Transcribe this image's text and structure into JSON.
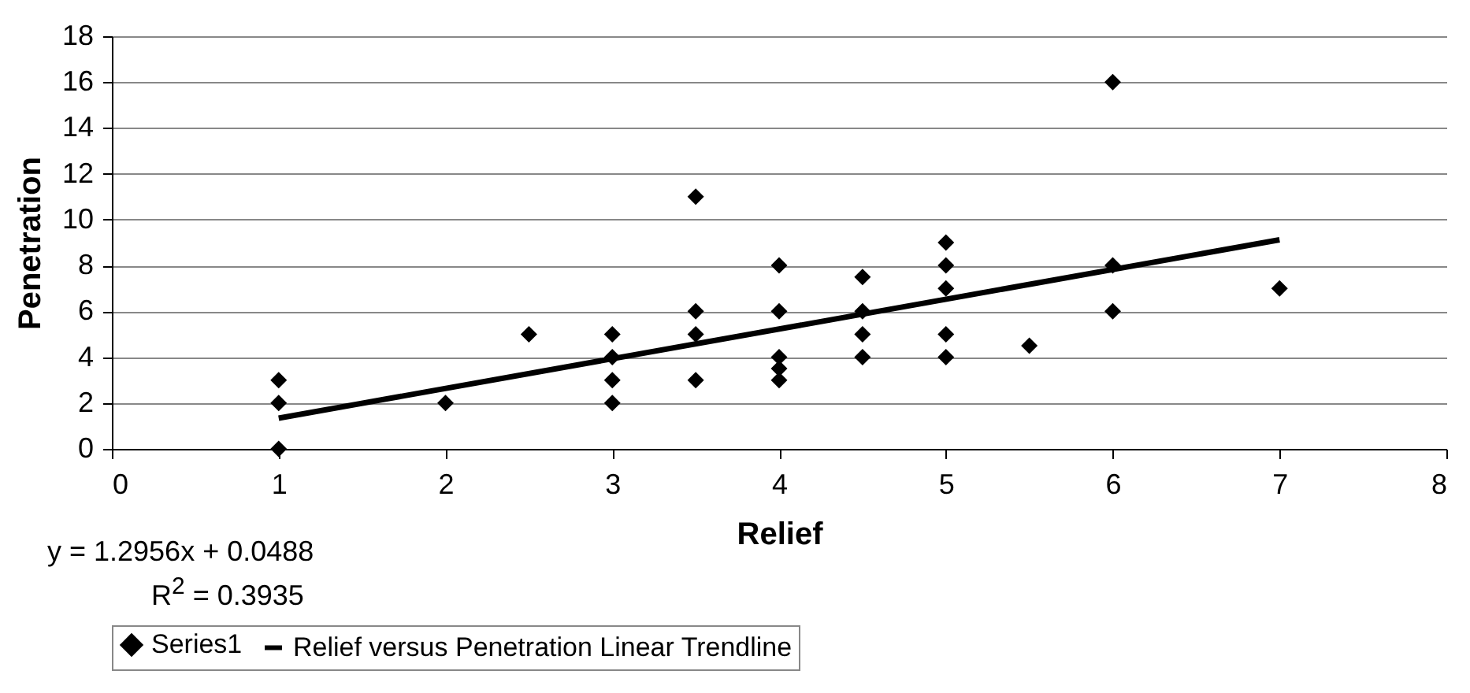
{
  "chart_data": {
    "type": "scatter",
    "xlabel": "Relief",
    "ylabel": "Penetration",
    "xlim": [
      0,
      8
    ],
    "xticks": [
      0,
      1,
      2,
      3,
      4,
      5,
      6,
      7,
      8
    ],
    "ylim": [
      0,
      18
    ],
    "yticks": [
      0,
      2,
      4,
      6,
      8,
      10,
      12,
      14,
      16,
      18
    ],
    "grid": "y",
    "legend": "bottom",
    "annotations": [
      "y = 1.2956x + 0.0488",
      "R$^{2}$ = 0.3935"
    ],
    "series": [
      {
        "name": "Series1",
        "marker": "diamond",
        "color": "#000000",
        "x": [
          1,
          1,
          1,
          2,
          2.5,
          3,
          3,
          3,
          3,
          3.5,
          3.5,
          3.5,
          3.5,
          4,
          4,
          4,
          4,
          4,
          4.5,
          4.5,
          4.5,
          4.5,
          5,
          5,
          5,
          5,
          5,
          5.5,
          6,
          6,
          6,
          7
        ],
        "values": [
          3,
          2,
          0,
          2,
          5,
          5,
          4,
          3,
          2,
          11,
          6,
          5,
          3,
          8,
          6,
          4,
          3.5,
          3,
          7.5,
          6,
          5,
          4,
          9,
          8,
          7,
          5,
          4,
          4.5,
          16,
          8,
          6,
          7
        ]
      },
      {
        "name": "Relief versus Penetration Linear Trendline",
        "type": "line",
        "color": "#000000",
        "line_style": "solid",
        "x": [
          1,
          7
        ],
        "values": [
          1.34,
          9.12
        ]
      }
    ]
  }
}
